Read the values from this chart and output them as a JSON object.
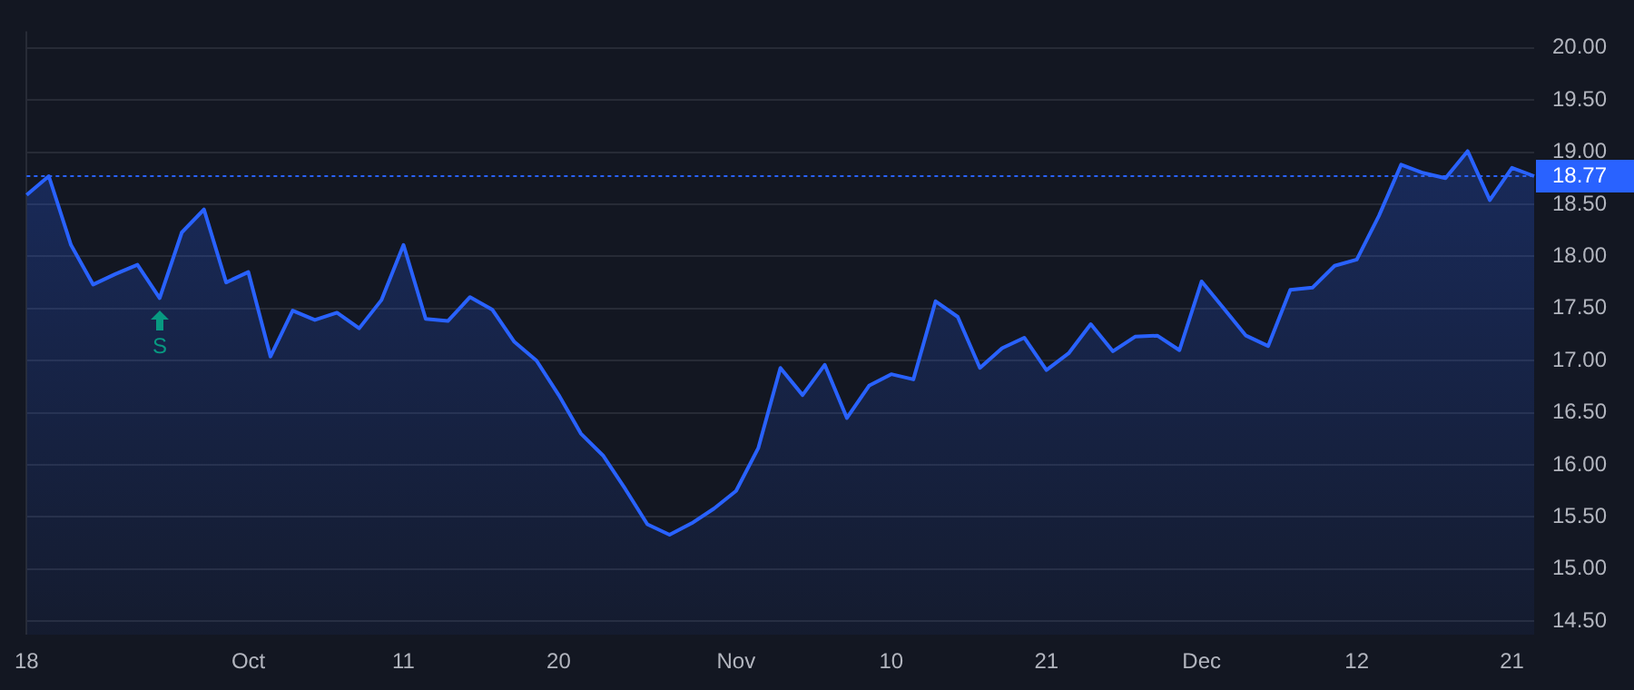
{
  "chart_data": {
    "type": "area",
    "categories": [
      "18",
      null,
      null,
      null,
      null,
      null,
      null,
      null,
      null,
      null,
      "Oct",
      null,
      null,
      null,
      null,
      null,
      null,
      "11",
      null,
      null,
      null,
      null,
      null,
      null,
      "20",
      null,
      null,
      null,
      null,
      null,
      null,
      null,
      "Nov",
      null,
      null,
      null,
      null,
      null,
      null,
      "10",
      null,
      null,
      null,
      null,
      null,
      null,
      "21",
      null,
      null,
      null,
      null,
      null,
      null,
      "Dec",
      null,
      null,
      null,
      null,
      null,
      null,
      "12",
      null,
      null,
      null,
      null,
      null,
      null,
      "21",
      null
    ],
    "series": [
      {
        "color": "#2962ff",
        "values": [
          18.59,
          18.77,
          18.11,
          17.73,
          17.83,
          17.92,
          17.6,
          18.23,
          18.45,
          17.75,
          17.85,
          17.04,
          17.48,
          17.39,
          17.46,
          17.31,
          17.58,
          18.11,
          17.4,
          17.38,
          17.61,
          17.49,
          17.18,
          17.0,
          16.67,
          16.3,
          16.09,
          15.77,
          15.43,
          15.33,
          15.44,
          15.58,
          15.75,
          16.16,
          16.93,
          16.67,
          16.96,
          16.45,
          16.76,
          16.87,
          16.82,
          17.57,
          17.42,
          16.93,
          17.12,
          17.22,
          16.91,
          17.07,
          17.35,
          17.09,
          17.23,
          17.24,
          17.1,
          17.76,
          17.5,
          17.24,
          17.14,
          17.68,
          17.7,
          17.91,
          17.97,
          18.39,
          18.88,
          18.8,
          18.75,
          19.01,
          18.54,
          18.85,
          18.77
        ]
      }
    ],
    "ylim": [
      14.37,
      20.16
    ],
    "yticks": [
      {
        "value": 14.5,
        "label": "14.50"
      },
      {
        "value": 15,
        "label": "15.00"
      },
      {
        "value": 15.5,
        "label": "15.50"
      },
      {
        "value": 16,
        "label": "16.00"
      },
      {
        "value": 16.5,
        "label": "16.50"
      },
      {
        "value": 17,
        "label": "17.00"
      },
      {
        "value": 17.5,
        "label": "17.50"
      },
      {
        "value": 18,
        "label": "18.00"
      },
      {
        "value": 18.5,
        "label": "18.50"
      },
      {
        "value": 19,
        "label": "19.00"
      },
      {
        "value": 19.5,
        "label": "19.50"
      },
      {
        "value": 20,
        "label": "20.00"
      }
    ],
    "ref_lines": [
      {
        "axis": "y",
        "value": 18.77,
        "label": "18.77",
        "color": "#2962ff",
        "line_style": "dotted"
      }
    ],
    "annotations": [
      {
        "text": "S",
        "y": 17.6
      }
    ],
    "grid": true,
    "legend": false
  }
}
